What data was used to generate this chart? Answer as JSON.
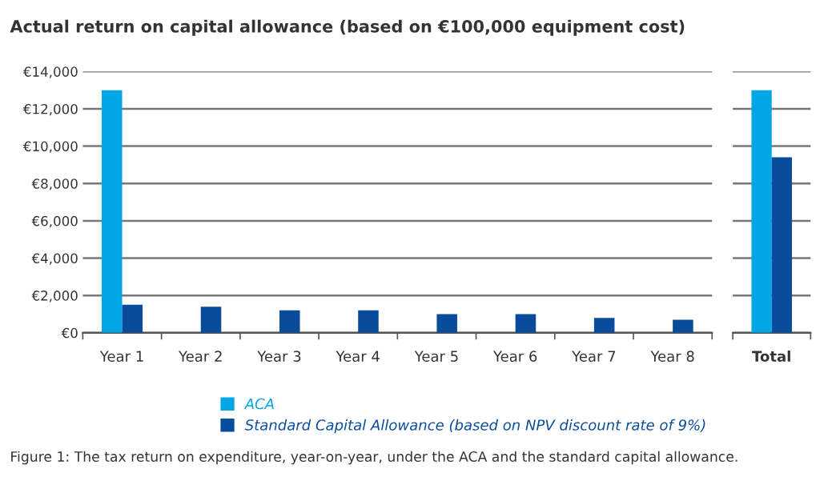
{
  "chart_data": [
    {
      "type": "bar",
      "title": "Actual return on capital allowance (based on €100,000 equipment cost)",
      "categories": [
        "Year 1",
        "Year 2",
        "Year 3",
        "Year 4",
        "Year 5",
        "Year 6",
        "Year 7",
        "Year 8"
      ],
      "series": [
        {
          "name": "ACA",
          "color": "#00a6e6",
          "values": [
            13000,
            null,
            null,
            null,
            null,
            null,
            null,
            null
          ]
        },
        {
          "name": "Standard Capital Allowance (based on NPV discount rate of 9%)",
          "color": "#0a4c9c",
          "values": [
            1500,
            1400,
            1200,
            1200,
            1000,
            1000,
            800,
            700
          ]
        }
      ],
      "ylim": [
        0,
        14000
      ],
      "yticks": [
        {
          "value": 0,
          "label": "€0"
        },
        {
          "value": 2000,
          "label": "€2,000"
        },
        {
          "value": 4000,
          "label": "€4,000"
        },
        {
          "value": 6000,
          "label": "€6,000"
        },
        {
          "value": 8000,
          "label": "€8,000"
        },
        {
          "value": 10000,
          "label": "€10,000"
        },
        {
          "value": 12000,
          "label": "€12,000"
        },
        {
          "value": 14000,
          "label": "€14,000"
        }
      ],
      "grid": "y",
      "legend": "bottom",
      "annotations": [
        "Figure 1: The tax return on expenditure, year-on-year, under the ACA and the standard capital allowance."
      ]
    },
    {
      "type": "bar",
      "categories": [
        "Total"
      ],
      "series": [
        {
          "color": "#00a6e6",
          "values": [
            13000
          ]
        },
        {
          "color": "#0a4c9c",
          "values": [
            9400
          ]
        }
      ],
      "ylim": [
        0,
        14000
      ],
      "yticks": [
        0,
        2000,
        4000,
        6000,
        8000,
        10000,
        12000,
        14000
      ],
      "grid": "y",
      "tick_labels": "x"
    }
  ]
}
